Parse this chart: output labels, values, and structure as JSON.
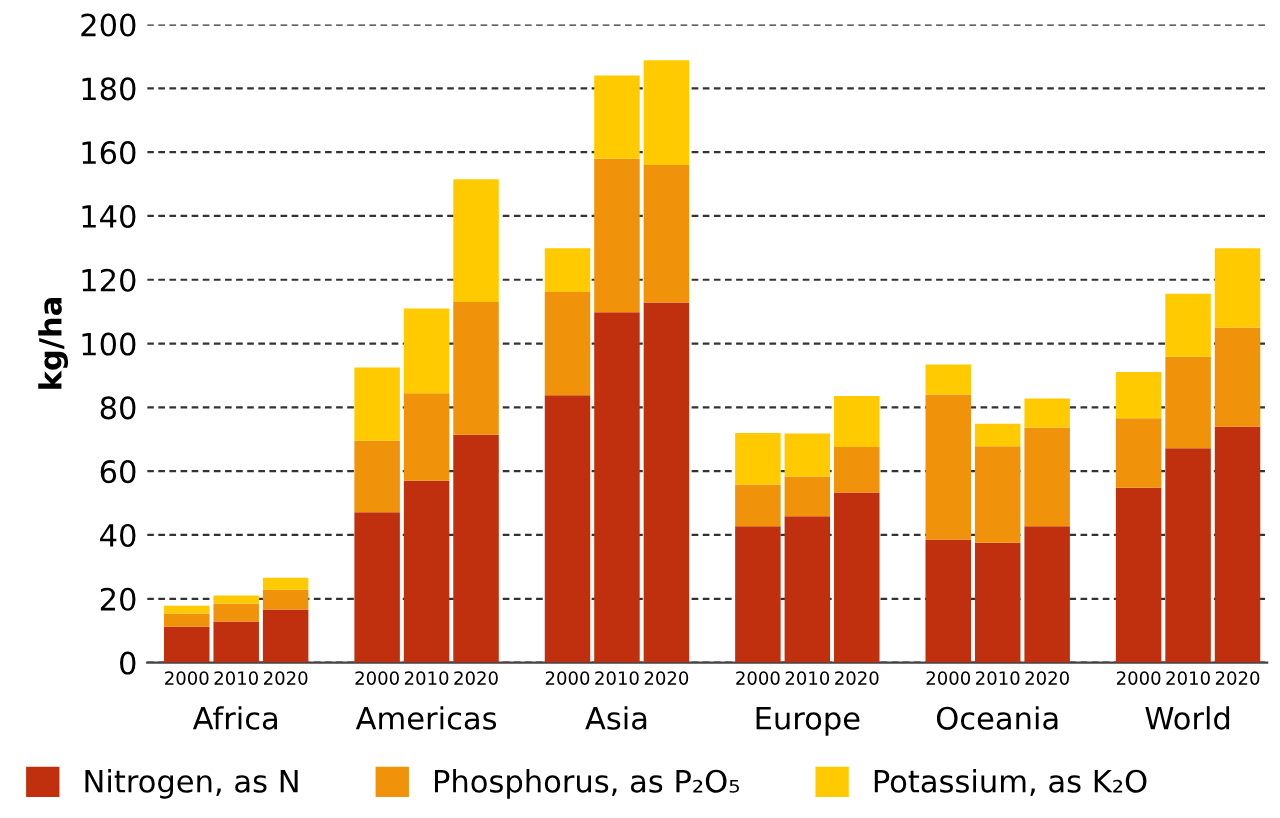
{
  "chart_data": {
    "type": "bar",
    "stacked": true,
    "ylabel": "kg/ha",
    "categories": [
      "2000",
      "2010",
      "2020",
      "2000",
      "2010",
      "2020",
      "2000",
      "2010",
      "2020",
      "2000",
      "2010",
      "2020",
      "2000",
      "2010",
      "2020",
      "2000",
      "2010",
      "2020"
    ],
    "annotations": [
      "Africa",
      "Americas",
      "Asia",
      "Europe",
      "Oceania",
      "World"
    ],
    "series": [
      {
        "name": "Nitrogen, as N",
        "color": "#c0300e",
        "values": [
          11.2,
          12.9,
          16.6,
          47.1,
          57.0,
          71.4,
          83.8,
          109.8,
          112.9,
          42.7,
          45.9,
          53.3,
          38.6,
          37.6,
          42.7,
          54.8,
          67.2,
          73.9
        ]
      },
      {
        "name": "Phosphorus, as P₂O₅",
        "color": "#f0920a",
        "values": [
          4.2,
          5.6,
          6.2,
          22.4,
          27.4,
          41.6,
          32.4,
          48.1,
          43.1,
          13.1,
          12.4,
          14.3,
          45.4,
          30.2,
          31.0,
          21.8,
          28.7,
          31.1
        ]
      },
      {
        "name": "Potassium, as K₂O",
        "color": "#ffcb00",
        "values": [
          2.4,
          2.5,
          3.8,
          23.0,
          26.6,
          38.5,
          13.7,
          26.1,
          32.8,
          16.2,
          13.5,
          16.0,
          9.4,
          7.1,
          9.1,
          14.5,
          19.7,
          24.9
        ]
      }
    ],
    "ylim": [
      0,
      200
    ],
    "yticks": [
      0,
      20,
      40,
      60,
      80,
      100,
      120,
      140,
      160,
      180,
      200
    ],
    "grid": "y",
    "legend": "bottom"
  }
}
